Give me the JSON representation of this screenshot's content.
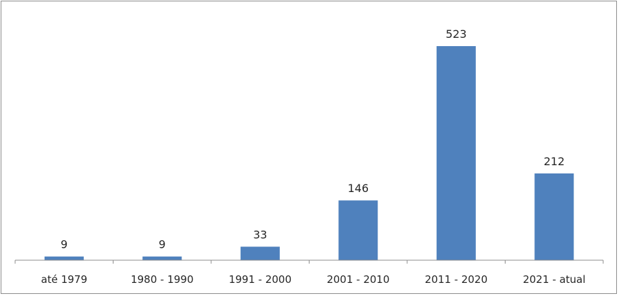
{
  "chart_data": {
    "type": "bar",
    "categories": [
      "até 1979",
      "1980 - 1990",
      "1991 - 2000",
      "2001 - 2010",
      "2011 - 2020",
      "2021 - atual"
    ],
    "values": [
      9,
      9,
      33,
      146,
      523,
      212
    ],
    "title": "",
    "xlabel": "",
    "ylabel": "",
    "ylim": [
      0,
      600
    ],
    "data_labels": true,
    "grid": false,
    "legend": "none",
    "bar_color": "#4f81bd",
    "axis_color": "#8c8c8c"
  }
}
